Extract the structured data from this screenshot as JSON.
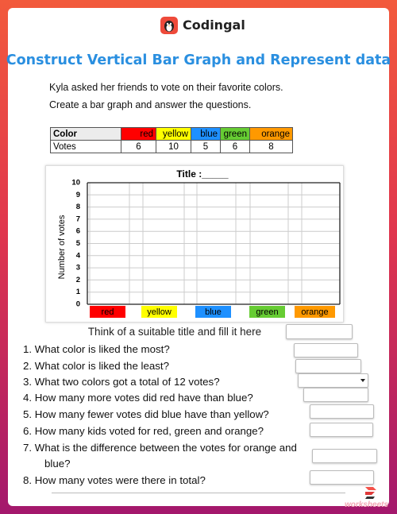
{
  "header": {
    "brand": "Codingal",
    "title": "Construct Vertical Bar Graph and Represent data"
  },
  "instructions": [
    "Kyla asked her friends to vote on their favorite colors.",
    "Create a bar graph and answer the questions."
  ],
  "table": {
    "header": [
      "Color",
      "red",
      "yellow",
      "blue",
      "green",
      "orange"
    ],
    "rows": [
      [
        "Votes",
        6,
        10,
        5,
        6,
        8
      ]
    ]
  },
  "graph": {
    "title": "Title :_____",
    "y_axis_label": "Number of votes",
    "y_labels": [
      10,
      9,
      8,
      7,
      6,
      5,
      4,
      3,
      2,
      1,
      0
    ],
    "categories": [
      "red",
      "yellow",
      "blue",
      "green",
      "orange"
    ]
  },
  "prompt": "Think of a suitable title and fill it here",
  "questions": [
    "1. What color is liked the most?",
    "2. What color is liked the least?",
    "3. What two colors got a total of 12 votes?",
    "4. How many more votes did red have than blue?",
    "5. How many fewer votes did blue have than yellow?",
    "6. How many kids voted for red, green and orange?",
    "7. What is the difference between the votes for orange and blue?",
    "8. How many votes were there in total?"
  ],
  "footer": {
    "brand": "worksheets"
  }
}
